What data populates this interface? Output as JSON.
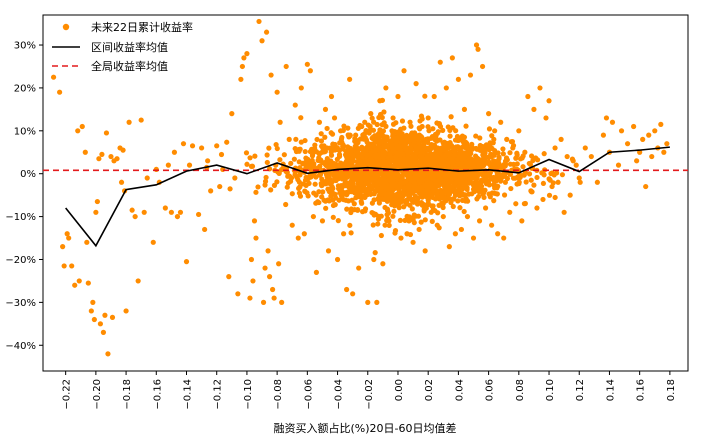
{
  "chart_data": {
    "type": "scatter",
    "title": "",
    "xlabel": "融资买入额占比(%)20日-60日均值差",
    "ylabel": "",
    "xlim": [
      -0.235,
      0.192
    ],
    "ylim": [
      -0.46,
      0.37
    ],
    "x_ticks": [
      -0.22,
      -0.2,
      -0.18,
      -0.16,
      -0.14,
      -0.12,
      -0.1,
      -0.08,
      -0.06,
      -0.04,
      -0.02,
      0.0,
      0.02,
      0.04,
      0.06,
      0.08,
      0.1,
      0.12,
      0.14,
      0.16,
      0.18
    ],
    "x_tick_labels": [
      "−0.22",
      "−0.20",
      "−0.18",
      "−0.16",
      "−0.14",
      "−0.12",
      "−0.10",
      "−0.08",
      "−0.06",
      "−0.04",
      "−0.02",
      "0.00",
      "0.02",
      "0.04",
      "0.06",
      "0.08",
      "0.10",
      "0.12",
      "0.14",
      "0.16",
      "0.18"
    ],
    "y_ticks": [
      -0.4,
      -0.3,
      -0.2,
      -0.1,
      0.0,
      0.1,
      0.2,
      0.3
    ],
    "y_tick_labels": [
      "−40%",
      "−30%",
      "−20%",
      "−10%",
      "0%",
      "10%",
      "20%",
      "30%"
    ],
    "legend": {
      "position": "top-left",
      "entries": [
        "未来22日累计收益率",
        "区间收益率均值",
        "全局收益率均值"
      ]
    },
    "colors": {
      "scatter": "#ff8c00",
      "mean_line": "#000000",
      "global_line": "#e31a1c"
    },
    "global_mean": 0.008,
    "mean_line": {
      "name": "区间收益率均值",
      "x": [
        -0.22,
        -0.2,
        -0.18,
        -0.16,
        -0.14,
        -0.12,
        -0.1,
        -0.08,
        -0.06,
        -0.04,
        -0.02,
        0.0,
        0.02,
        0.04,
        0.06,
        0.08,
        0.1,
        0.12,
        0.14,
        0.16,
        0.18
      ],
      "y": [
        -0.08,
        -0.168,
        -0.037,
        -0.026,
        0.006,
        0.02,
        0.0,
        0.025,
        0.001,
        0.01,
        0.014,
        0.009,
        0.013,
        0.006,
        0.009,
        0.002,
        0.033,
        0.005,
        0.05,
        0.055,
        0.062
      ]
    },
    "scatter": {
      "name": "未来22日累计收益率",
      "points": [
        [
          -0.228,
          0.225
        ],
        [
          -0.224,
          0.19
        ],
        [
          -0.222,
          -0.17
        ],
        [
          -0.221,
          -0.215
        ],
        [
          -0.219,
          -0.14
        ],
        [
          -0.218,
          -0.15
        ],
        [
          -0.216,
          -0.215
        ],
        [
          -0.214,
          -0.26
        ],
        [
          -0.212,
          0.1
        ],
        [
          -0.211,
          -0.25
        ],
        [
          -0.209,
          0.11
        ],
        [
          -0.207,
          0.05
        ],
        [
          -0.206,
          -0.16
        ],
        [
          -0.205,
          -0.255
        ],
        [
          -0.203,
          -0.32
        ],
        [
          -0.202,
          -0.3
        ],
        [
          -0.201,
          -0.34
        ],
        [
          -0.2,
          -0.09
        ],
        [
          -0.199,
          -0.065
        ],
        [
          -0.198,
          0.035
        ],
        [
          -0.197,
          -0.35
        ],
        [
          -0.196,
          0.045
        ],
        [
          -0.195,
          -0.37
        ],
        [
          -0.194,
          -0.33
        ],
        [
          -0.193,
          0.095
        ],
        [
          -0.192,
          -0.42
        ],
        [
          -0.19,
          0.04
        ],
        [
          -0.189,
          -0.335
        ],
        [
          -0.188,
          0.03
        ],
        [
          -0.186,
          0.035
        ],
        [
          -0.184,
          0.06
        ],
        [
          -0.183,
          -0.02
        ],
        [
          -0.182,
          0.055
        ],
        [
          -0.181,
          -0.04
        ],
        [
          -0.18,
          -0.32
        ],
        [
          -0.178,
          0.12
        ],
        [
          -0.176,
          -0.085
        ],
        [
          -0.174,
          -0.1
        ],
        [
          -0.172,
          -0.25
        ],
        [
          -0.17,
          0.125
        ],
        [
          -0.168,
          -0.09
        ],
        [
          -0.166,
          -0.01
        ],
        [
          -0.162,
          -0.16
        ],
        [
          -0.16,
          0.01
        ],
        [
          -0.158,
          -0.02
        ],
        [
          -0.154,
          -0.08
        ],
        [
          -0.152,
          0.02
        ],
        [
          -0.15,
          -0.09
        ],
        [
          -0.148,
          0.05
        ],
        [
          -0.146,
          -0.1
        ],
        [
          -0.144,
          -0.09
        ],
        [
          -0.142,
          0.07
        ],
        [
          -0.14,
          -0.205
        ],
        [
          -0.138,
          0.02
        ],
        [
          -0.136,
          0.065
        ],
        [
          -0.132,
          -0.095
        ],
        [
          -0.13,
          0.06
        ],
        [
          -0.128,
          -0.13
        ],
        [
          -0.126,
          0.03
        ],
        [
          -0.124,
          -0.04
        ],
        [
          -0.12,
          0.065
        ],
        [
          -0.118,
          -0.03
        ],
        [
          -0.116,
          0.01
        ],
        [
          -0.112,
          -0.24
        ],
        [
          -0.11,
          0.14
        ],
        [
          -0.108,
          -0.01
        ],
        [
          -0.106,
          -0.28
        ],
        [
          -0.104,
          0.22
        ],
        [
          -0.103,
          0.25
        ],
        [
          -0.102,
          0.27
        ],
        [
          -0.1,
          0.28
        ],
        [
          -0.098,
          -0.29
        ],
        [
          -0.097,
          -0.2
        ],
        [
          -0.096,
          -0.25
        ],
        [
          -0.095,
          -0.11
        ],
        [
          -0.094,
          -0.15
        ],
        [
          -0.092,
          0.355
        ],
        [
          -0.09,
          0.31
        ],
        [
          -0.089,
          -0.3
        ],
        [
          -0.088,
          -0.22
        ],
        [
          -0.087,
          0.33
        ],
        [
          -0.086,
          -0.18
        ],
        [
          -0.085,
          -0.24
        ],
        [
          -0.084,
          0.23
        ],
        [
          -0.083,
          -0.27
        ],
        [
          -0.082,
          -0.29
        ],
        [
          -0.08,
          0.19
        ],
        [
          -0.079,
          -0.21
        ],
        [
          -0.078,
          0.12
        ],
        [
          -0.077,
          -0.3
        ],
        [
          -0.074,
          0.25
        ],
        [
          -0.072,
          0.08
        ],
        [
          -0.07,
          -0.12
        ],
        [
          -0.068,
          0.16
        ],
        [
          -0.066,
          -0.15
        ],
        [
          -0.064,
          0.2
        ],
        [
          -0.062,
          -0.14
        ],
        [
          -0.06,
          0.255
        ],
        [
          -0.058,
          0.24
        ],
        [
          -0.056,
          -0.1
        ],
        [
          -0.054,
          -0.23
        ],
        [
          -0.052,
          0.12
        ],
        [
          -0.05,
          -0.11
        ],
        [
          -0.048,
          0.15
        ],
        [
          -0.046,
          -0.18
        ],
        [
          -0.044,
          0.18
        ],
        [
          -0.042,
          0.13
        ],
        [
          -0.04,
          -0.2
        ],
        [
          -0.038,
          0.1
        ],
        [
          -0.036,
          -0.14
        ],
        [
          -0.034,
          -0.27
        ],
        [
          -0.032,
          0.22
        ],
        [
          -0.03,
          -0.28
        ],
        [
          -0.028,
          0.09
        ],
        [
          -0.026,
          -0.22
        ],
        [
          -0.024,
          0.11
        ],
        [
          -0.022,
          0.12
        ],
        [
          -0.02,
          -0.3
        ],
        [
          -0.018,
          0.14
        ],
        [
          -0.016,
          -0.2
        ],
        [
          -0.014,
          -0.3
        ],
        [
          -0.012,
          0.17
        ],
        [
          -0.01,
          -0.21
        ],
        [
          -0.008,
          0.2
        ],
        [
          -0.006,
          -0.11
        ],
        [
          -0.004,
          0.1
        ],
        [
          0.0,
          0.18
        ],
        [
          0.002,
          -0.15
        ],
        [
          0.004,
          0.24
        ],
        [
          0.006,
          -0.14
        ],
        [
          0.008,
          0.12
        ],
        [
          0.01,
          -0.16
        ],
        [
          0.012,
          0.21
        ],
        [
          0.014,
          -0.13
        ],
        [
          0.016,
          0.11
        ],
        [
          0.018,
          -0.18
        ],
        [
          0.02,
          0.13
        ],
        [
          0.022,
          -0.09
        ],
        [
          0.024,
          0.18
        ],
        [
          0.026,
          -0.12
        ],
        [
          0.028,
          0.26
        ],
        [
          0.03,
          -0.1
        ],
        [
          0.032,
          0.2
        ],
        [
          0.034,
          -0.17
        ],
        [
          0.036,
          0.27
        ],
        [
          0.038,
          -0.14
        ],
        [
          0.04,
          0.22
        ],
        [
          0.042,
          -0.13
        ],
        [
          0.044,
          0.15
        ],
        [
          0.046,
          -0.1
        ],
        [
          0.048,
          0.23
        ],
        [
          0.05,
          -0.15
        ],
        [
          0.052,
          0.3
        ],
        [
          0.053,
          0.29
        ],
        [
          0.054,
          -0.11
        ],
        [
          0.056,
          0.25
        ],
        [
          0.058,
          -0.08
        ],
        [
          0.06,
          0.14
        ],
        [
          0.062,
          -0.12
        ],
        [
          0.064,
          0.1
        ],
        [
          0.066,
          -0.14
        ],
        [
          0.068,
          0.12
        ],
        [
          0.07,
          -0.15
        ],
        [
          0.072,
          0.08
        ],
        [
          0.074,
          -0.09
        ],
        [
          0.076,
          0.06
        ],
        [
          0.078,
          -0.07
        ],
        [
          0.08,
          0.1
        ],
        [
          0.082,
          -0.11
        ],
        [
          0.084,
          0.05
        ],
        [
          0.086,
          0.18
        ],
        [
          0.088,
          -0.04
        ],
        [
          0.09,
          0.15
        ],
        [
          0.092,
          -0.08
        ],
        [
          0.094,
          0.2
        ],
        [
          0.096,
          -0.06
        ],
        [
          0.098,
          0.13
        ],
        [
          0.1,
          0.17
        ],
        [
          0.102,
          -0.03
        ],
        [
          0.104,
          0.06
        ],
        [
          0.106,
          -0.02
        ],
        [
          0.108,
          0.08
        ],
        [
          0.11,
          -0.09
        ],
        [
          0.112,
          0.04
        ],
        [
          0.114,
          -0.05
        ],
        [
          0.116,
          0.03
        ],
        [
          0.118,
          0.02
        ],
        [
          0.12,
          -0.01
        ],
        [
          0.124,
          0.06
        ],
        [
          0.128,
          0.04
        ],
        [
          0.132,
          -0.02
        ],
        [
          0.136,
          0.09
        ],
        [
          0.138,
          0.13
        ],
        [
          0.14,
          0.05
        ],
        [
          0.142,
          0.12
        ],
        [
          0.146,
          0.02
        ],
        [
          0.148,
          0.1
        ],
        [
          0.152,
          0.07
        ],
        [
          0.156,
          0.11
        ],
        [
          0.158,
          0.03
        ],
        [
          0.16,
          0.05
        ],
        [
          0.162,
          0.08
        ],
        [
          0.164,
          -0.03
        ],
        [
          0.166,
          0.09
        ],
        [
          0.168,
          0.04
        ],
        [
          0.17,
          0.1
        ],
        [
          0.172,
          0.06
        ],
        [
          0.174,
          0.115
        ],
        [
          0.176,
          0.05
        ],
        [
          0.178,
          0.07
        ]
      ]
    }
  }
}
